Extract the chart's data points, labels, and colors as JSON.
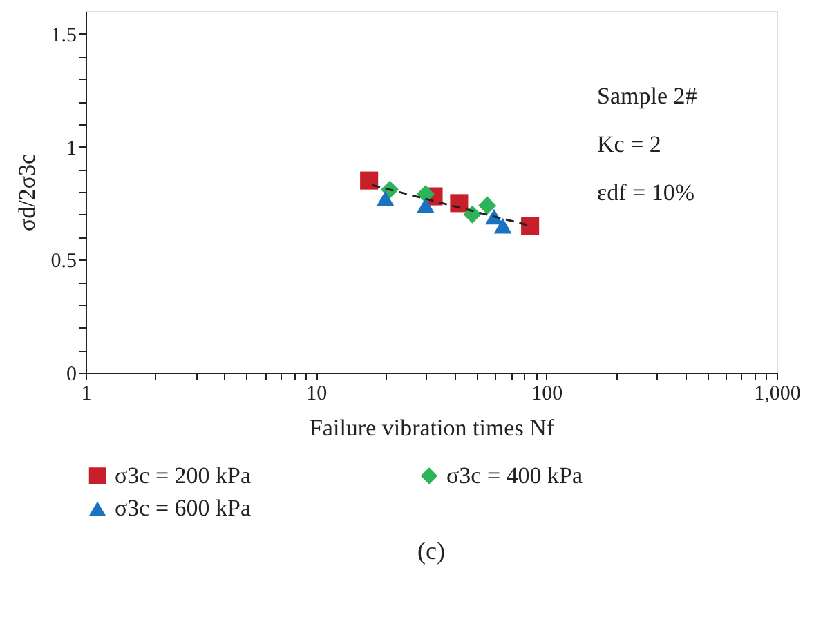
{
  "chart_data": {
    "type": "scatter",
    "xlabel": "Failure vibration times Nf",
    "ylabel": "σd/2σ3c",
    "log": "x",
    "xlim": [
      1,
      1000
    ],
    "ylim": [
      0,
      1.6
    ],
    "xticks": [
      1,
      {
        "value": 2,
        "label": null
      },
      {
        "value": 3,
        "label": null
      },
      {
        "value": 4,
        "label": null
      },
      {
        "value": 5,
        "label": null
      },
      {
        "value": 6,
        "label": null
      },
      {
        "value": 7,
        "label": null
      },
      {
        "value": 8,
        "label": null
      },
      {
        "value": 9,
        "label": null
      },
      10,
      {
        "value": 20,
        "label": null
      },
      {
        "value": 30,
        "label": null
      },
      {
        "value": 40,
        "label": null
      },
      {
        "value": 50,
        "label": null
      },
      {
        "value": 60,
        "label": null
      },
      {
        "value": 70,
        "label": null
      },
      {
        "value": 80,
        "label": null
      },
      {
        "value": 90,
        "label": null
      },
      100,
      {
        "value": 200,
        "label": null
      },
      {
        "value": 300,
        "label": null
      },
      {
        "value": 400,
        "label": null
      },
      {
        "value": 500,
        "label": null
      },
      {
        "value": 600,
        "label": null
      },
      {
        "value": 700,
        "label": null
      },
      {
        "value": 800,
        "label": null
      },
      {
        "value": 900,
        "label": null
      },
      {
        "value": 1000,
        "label": "1,000"
      }
    ],
    "yticks": [
      0,
      {
        "value": 0.1,
        "label": null
      },
      {
        "value": 0.2,
        "label": null
      },
      {
        "value": 0.3,
        "label": null
      },
      {
        "value": 0.4,
        "label": null
      },
      0.5,
      {
        "value": 0.6,
        "label": null
      },
      {
        "value": 0.7,
        "label": null
      },
      {
        "value": 0.8,
        "label": null
      },
      {
        "value": 0.9,
        "label": null
      },
      1,
      {
        "value": 1.1,
        "label": null
      },
      {
        "value": 1.2,
        "label": null
      },
      {
        "value": 1.3,
        "label": null
      },
      {
        "value": 1.4,
        "label": null
      },
      1.5
    ],
    "grid": false,
    "legend": "bottom",
    "series": [
      {
        "name": "σ3c = 200 kPa",
        "color": "#c8202a",
        "marker": "square",
        "x": [
          17.0,
          32.4,
          41.8,
          85
        ],
        "values": [
          0.85,
          0.78,
          0.75,
          0.65
        ]
      },
      {
        "name": "σ3c = 400 kPa",
        "color": "#2db35a",
        "marker": "diamond",
        "x": [
          20.9,
          29.9,
          47.7,
          55.4
        ],
        "values": [
          0.81,
          0.79,
          0.7,
          0.74
        ]
      },
      {
        "name": "σ3c = 600 kPa",
        "color": "#1a73c0",
        "marker": "triangle",
        "x": [
          20.0,
          29.9,
          59.3,
          64.7
        ],
        "values": [
          0.77,
          0.74,
          0.69,
          0.65
        ]
      },
      {
        "type": "line",
        "color": "#222222",
        "line_style": "dashed",
        "marker": "none",
        "x": [
          17.5,
          85
        ],
        "values": [
          0.83,
          0.65
        ]
      }
    ],
    "annotations": [
      "Sample 2#",
      "Kc = 2",
      "εdf = 10%",
      "(c)"
    ]
  }
}
